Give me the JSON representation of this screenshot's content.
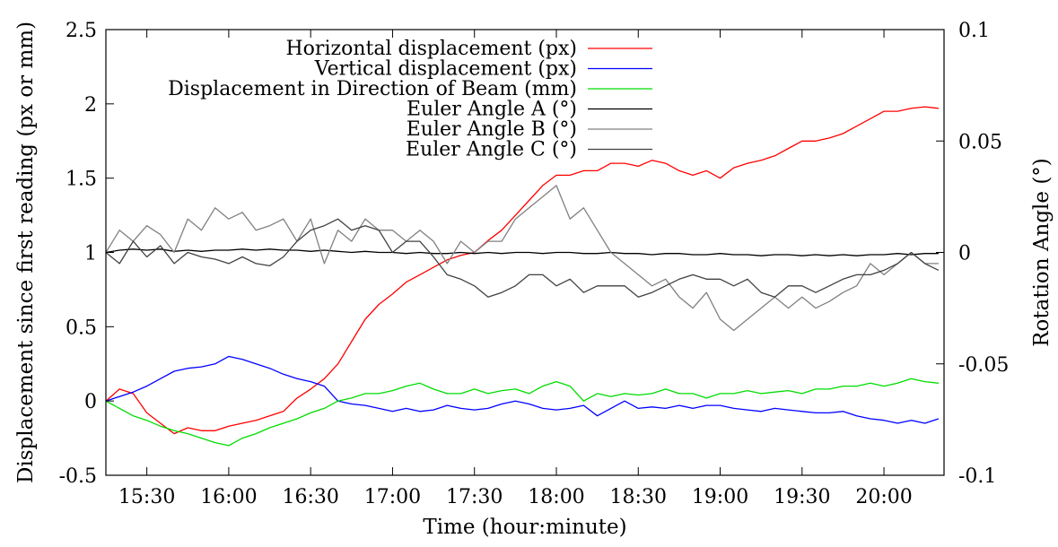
{
  "chart_data": {
    "type": "line",
    "xlabel": "Time (hour:minute)",
    "ylabel_left": "Displacement since first reading (px or mm)",
    "ylabel_right": "Rotation Angle (°)",
    "x_unit": "minutes since 15:00",
    "xlim": [
      15,
      322
    ],
    "ylim_left": [
      -0.5,
      2.5
    ],
    "ylim_right": [
      -0.1,
      0.1
    ],
    "x_ticks": [
      {
        "x": 30,
        "label": "15:30"
      },
      {
        "x": 60,
        "label": "16:00"
      },
      {
        "x": 90,
        "label": "16:30"
      },
      {
        "x": 120,
        "label": "17:00"
      },
      {
        "x": 150,
        "label": "17:30"
      },
      {
        "x": 180,
        "label": "18:00"
      },
      {
        "x": 210,
        "label": "18:30"
      },
      {
        "x": 240,
        "label": "19:00"
      },
      {
        "x": 270,
        "label": "19:30"
      },
      {
        "x": 300,
        "label": "20:00"
      }
    ],
    "y_ticks_left": [
      {
        "v": -0.5,
        "label": "-0.5"
      },
      {
        "v": 0,
        "label": "0"
      },
      {
        "v": 0.5,
        "label": "0.5"
      },
      {
        "v": 1,
        "label": "1"
      },
      {
        "v": 1.5,
        "label": "1.5"
      },
      {
        "v": 2,
        "label": "2"
      },
      {
        "v": 2.5,
        "label": "2.5"
      }
    ],
    "y_ticks_right": [
      {
        "v": -0.1,
        "label": "-0.1"
      },
      {
        "v": -0.05,
        "label": "-0.05"
      },
      {
        "v": 0,
        "label": "0"
      },
      {
        "v": 0.05,
        "label": "0.05"
      },
      {
        "v": 0.1,
        "label": "0.1"
      }
    ],
    "grid": false,
    "legend_position": "top-center",
    "series": [
      {
        "name": "Horizontal displacement (px)",
        "axis": "left",
        "color": "#ff0000",
        "x": [
          15,
          20,
          25,
          30,
          35,
          40,
          45,
          50,
          55,
          60,
          65,
          70,
          75,
          80,
          85,
          90,
          95,
          100,
          105,
          110,
          115,
          120,
          125,
          130,
          135,
          140,
          145,
          150,
          155,
          160,
          165,
          170,
          175,
          180,
          185,
          190,
          195,
          200,
          205,
          210,
          215,
          220,
          225,
          230,
          235,
          240,
          245,
          250,
          255,
          260,
          265,
          270,
          275,
          280,
          285,
          290,
          295,
          300,
          305,
          310,
          315,
          320
        ],
        "y": [
          0.0,
          0.08,
          0.05,
          -0.08,
          -0.15,
          -0.22,
          -0.18,
          -0.2,
          -0.2,
          -0.17,
          -0.15,
          -0.13,
          -0.1,
          -0.07,
          0.02,
          0.08,
          0.15,
          0.25,
          0.4,
          0.55,
          0.65,
          0.72,
          0.8,
          0.85,
          0.9,
          0.95,
          0.98,
          1.0,
          1.08,
          1.15,
          1.25,
          1.35,
          1.45,
          1.52,
          1.52,
          1.55,
          1.55,
          1.6,
          1.6,
          1.58,
          1.62,
          1.6,
          1.55,
          1.52,
          1.55,
          1.5,
          1.57,
          1.6,
          1.62,
          1.65,
          1.7,
          1.75,
          1.75,
          1.77,
          1.8,
          1.85,
          1.9,
          1.95,
          1.95,
          1.97,
          1.98,
          1.97
        ]
      },
      {
        "name": "Vertical displacement (px)",
        "axis": "left",
        "color": "#0000ff",
        "x": [
          15,
          20,
          25,
          30,
          35,
          40,
          45,
          50,
          55,
          60,
          65,
          70,
          75,
          80,
          85,
          90,
          95,
          100,
          105,
          110,
          115,
          120,
          125,
          130,
          135,
          140,
          145,
          150,
          155,
          160,
          165,
          170,
          175,
          180,
          185,
          190,
          195,
          200,
          205,
          210,
          215,
          220,
          225,
          230,
          235,
          240,
          245,
          250,
          255,
          260,
          265,
          270,
          275,
          280,
          285,
          290,
          295,
          300,
          305,
          310,
          315,
          320
        ],
        "y": [
          0.0,
          0.03,
          0.06,
          0.1,
          0.15,
          0.2,
          0.22,
          0.23,
          0.25,
          0.3,
          0.28,
          0.25,
          0.22,
          0.18,
          0.15,
          0.13,
          0.1,
          0.0,
          -0.02,
          -0.03,
          -0.05,
          -0.07,
          -0.05,
          -0.07,
          -0.06,
          -0.03,
          -0.05,
          -0.06,
          -0.05,
          -0.02,
          0.0,
          -0.02,
          -0.05,
          -0.06,
          -0.05,
          -0.03,
          -0.1,
          -0.05,
          0.0,
          -0.05,
          -0.04,
          -0.05,
          -0.03,
          -0.05,
          -0.03,
          -0.03,
          -0.05,
          -0.06,
          -0.07,
          -0.05,
          -0.06,
          -0.07,
          -0.08,
          -0.08,
          -0.07,
          -0.1,
          -0.12,
          -0.13,
          -0.15,
          -0.13,
          -0.15,
          -0.12
        ]
      },
      {
        "name": "Displacement in Direction of Beam (mm)",
        "axis": "left",
        "color": "#00dd00",
        "x": [
          15,
          20,
          25,
          30,
          35,
          40,
          45,
          50,
          55,
          60,
          65,
          70,
          75,
          80,
          85,
          90,
          95,
          100,
          105,
          110,
          115,
          120,
          125,
          130,
          135,
          140,
          145,
          150,
          155,
          160,
          165,
          170,
          175,
          180,
          185,
          190,
          195,
          200,
          205,
          210,
          215,
          220,
          225,
          230,
          235,
          240,
          245,
          250,
          255,
          260,
          265,
          270,
          275,
          280,
          285,
          290,
          295,
          300,
          305,
          310,
          315,
          320
        ],
        "y": [
          0.0,
          -0.05,
          -0.1,
          -0.13,
          -0.17,
          -0.2,
          -0.22,
          -0.25,
          -0.28,
          -0.3,
          -0.25,
          -0.22,
          -0.18,
          -0.15,
          -0.12,
          -0.08,
          -0.05,
          0.0,
          0.02,
          0.05,
          0.05,
          0.07,
          0.1,
          0.12,
          0.08,
          0.05,
          0.05,
          0.08,
          0.05,
          0.07,
          0.08,
          0.05,
          0.1,
          0.13,
          0.1,
          0.0,
          0.05,
          0.03,
          0.05,
          0.04,
          0.05,
          0.08,
          0.05,
          0.05,
          0.02,
          0.05,
          0.05,
          0.07,
          0.05,
          0.06,
          0.07,
          0.05,
          0.08,
          0.08,
          0.1,
          0.1,
          0.12,
          0.1,
          0.12,
          0.15,
          0.13,
          0.12
        ]
      },
      {
        "name": "Euler Angle A (°)",
        "axis": "right",
        "color": "#000000",
        "x": [
          15,
          20,
          25,
          30,
          35,
          40,
          45,
          50,
          55,
          60,
          65,
          70,
          75,
          80,
          85,
          90,
          95,
          100,
          105,
          110,
          115,
          120,
          125,
          130,
          135,
          140,
          145,
          150,
          155,
          160,
          165,
          170,
          175,
          180,
          185,
          190,
          195,
          200,
          205,
          210,
          215,
          220,
          225,
          230,
          235,
          240,
          245,
          250,
          255,
          260,
          265,
          270,
          275,
          280,
          285,
          290,
          295,
          300,
          305,
          310,
          315,
          320
        ],
        "y": [
          0.0,
          0.001,
          0.0015,
          0.001,
          0.0015,
          0.0005,
          0.001,
          0.0005,
          0.001,
          0.001,
          0.0015,
          0.001,
          0.0015,
          0.001,
          0.001,
          0.0005,
          0.001,
          0.0005,
          0.0,
          0.0005,
          0.0,
          0.0,
          -0.0005,
          0.0,
          -0.0005,
          -0.0005,
          0.0,
          -0.0005,
          0.0,
          -0.0005,
          0.0,
          0.0,
          -0.0005,
          0.0,
          0.0,
          -0.0005,
          -0.0005,
          0.0,
          -0.0005,
          -0.0005,
          -0.001,
          -0.0005,
          -0.0005,
          -0.001,
          -0.001,
          -0.0005,
          -0.001,
          -0.001,
          -0.0015,
          -0.001,
          -0.001,
          -0.0015,
          -0.001,
          -0.0015,
          -0.001,
          -0.0015,
          -0.001,
          -0.001,
          -0.0005,
          -0.001,
          -0.0005,
          -0.0005
        ]
      },
      {
        "name": "Euler Angle B (°)",
        "axis": "right",
        "color": "#808080",
        "x": [
          15,
          20,
          25,
          30,
          35,
          40,
          45,
          50,
          55,
          60,
          65,
          70,
          75,
          80,
          85,
          90,
          95,
          100,
          105,
          110,
          115,
          120,
          125,
          130,
          135,
          140,
          145,
          150,
          155,
          160,
          165,
          170,
          175,
          180,
          185,
          190,
          195,
          200,
          205,
          210,
          215,
          220,
          225,
          230,
          235,
          240,
          245,
          250,
          255,
          260,
          265,
          270,
          275,
          280,
          285,
          290,
          295,
          300,
          305,
          310,
          315,
          320
        ],
        "y": [
          0.0,
          0.01,
          0.005,
          0.012,
          0.008,
          0.0,
          0.015,
          0.01,
          0.02,
          0.015,
          0.018,
          0.01,
          0.012,
          0.015,
          0.005,
          0.015,
          -0.005,
          0.01,
          0.005,
          0.015,
          0.01,
          0.01,
          0.005,
          0.01,
          0.005,
          -0.005,
          0.005,
          0.0,
          0.005,
          0.005,
          0.015,
          0.02,
          0.025,
          0.03,
          0.015,
          0.02,
          0.01,
          0.0,
          -0.005,
          -0.01,
          -0.015,
          -0.012,
          -0.02,
          -0.025,
          -0.018,
          -0.03,
          -0.035,
          -0.03,
          -0.025,
          -0.02,
          -0.025,
          -0.02,
          -0.025,
          -0.022,
          -0.018,
          -0.015,
          -0.005,
          -0.01,
          -0.005,
          0.0,
          -0.005,
          -0.005
        ]
      },
      {
        "name": "Euler Angle C (°)",
        "axis": "right",
        "color": "#404040",
        "x": [
          15,
          20,
          25,
          30,
          35,
          40,
          45,
          50,
          55,
          60,
          65,
          70,
          75,
          80,
          85,
          90,
          95,
          100,
          105,
          110,
          115,
          120,
          125,
          130,
          135,
          140,
          145,
          150,
          155,
          160,
          165,
          170,
          175,
          180,
          185,
          190,
          195,
          200,
          205,
          210,
          215,
          220,
          225,
          230,
          235,
          240,
          245,
          250,
          255,
          260,
          265,
          270,
          275,
          280,
          285,
          290,
          295,
          300,
          305,
          310,
          315,
          320
        ],
        "y": [
          0.0,
          -0.005,
          0.005,
          -0.002,
          0.003,
          -0.005,
          0.0,
          -0.002,
          -0.003,
          -0.005,
          -0.002,
          -0.005,
          -0.006,
          -0.002,
          0.005,
          0.01,
          0.012,
          0.015,
          0.01,
          0.012,
          0.01,
          0.0,
          0.005,
          0.005,
          -0.002,
          -0.01,
          -0.012,
          -0.015,
          -0.02,
          -0.018,
          -0.015,
          -0.01,
          -0.01,
          -0.015,
          -0.012,
          -0.018,
          -0.015,
          -0.015,
          -0.015,
          -0.02,
          -0.018,
          -0.015,
          -0.012,
          -0.01,
          -0.012,
          -0.012,
          -0.015,
          -0.012,
          -0.018,
          -0.02,
          -0.015,
          -0.015,
          -0.018,
          -0.015,
          -0.012,
          -0.01,
          -0.01,
          -0.008,
          -0.005,
          0.0,
          -0.005,
          -0.008
        ]
      }
    ]
  }
}
